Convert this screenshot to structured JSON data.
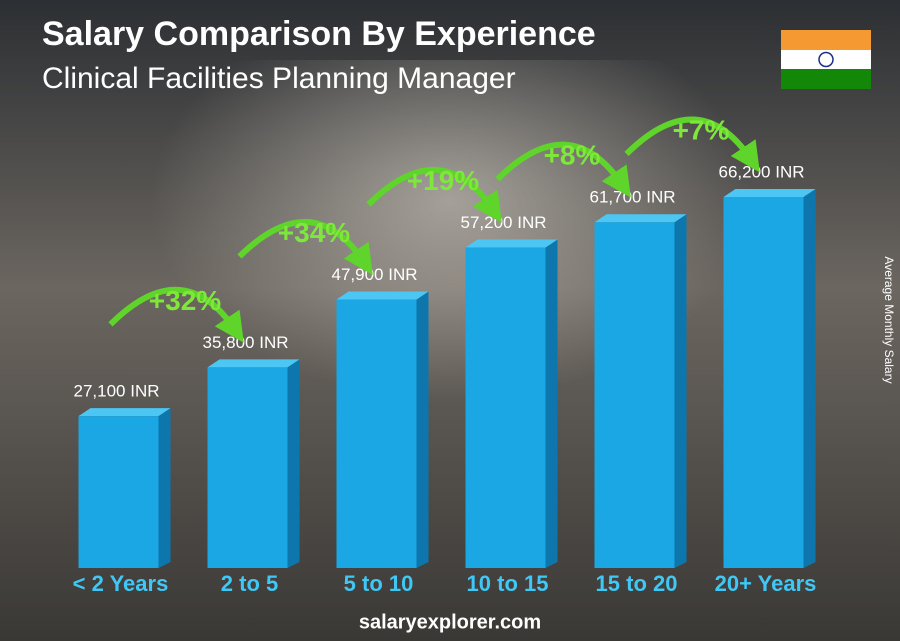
{
  "chart_data": {
    "type": "bar",
    "title": "Salary Comparison By Experience",
    "subtitle": "Clinical Facilities Planning Manager",
    "y_axis_label": "Average Monthly Salary",
    "categories": [
      "< 2 Years",
      "2 to 5",
      "5 to 10",
      "10 to 15",
      "15 to 20",
      "20+ Years"
    ],
    "values": [
      27100,
      35800,
      47900,
      57200,
      61700,
      66200
    ],
    "value_labels": [
      "27,100 INR",
      "35,800 INR",
      "47,900 INR",
      "57,200 INR",
      "61,700 INR",
      "66,200 INR"
    ],
    "annotations": [
      "+32%",
      "+34%",
      "+19%",
      "+8%",
      "+7%"
    ],
    "color": "#1ba6e4",
    "footer": "salaryexplorer.com"
  }
}
